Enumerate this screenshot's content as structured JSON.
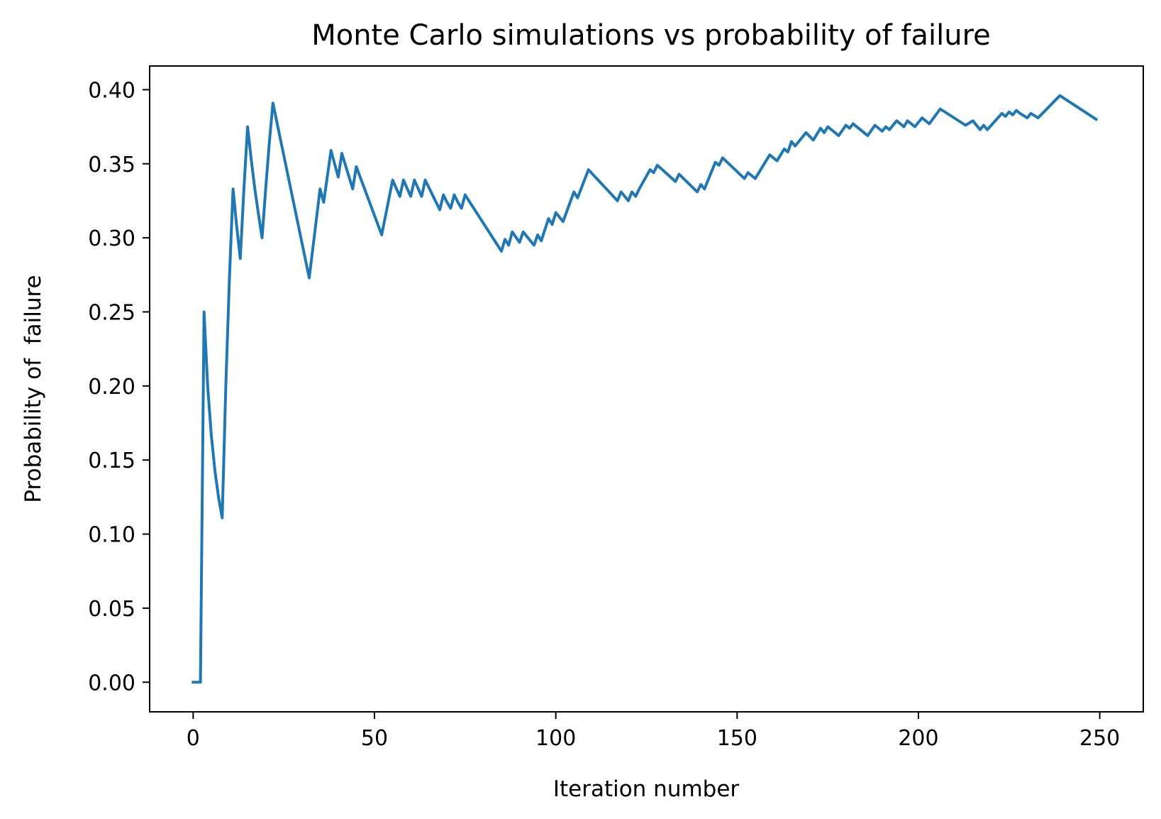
{
  "chart_data": {
    "type": "line",
    "title": "Monte Carlo simulations vs probability of failure",
    "xlabel": "Iteration number",
    "ylabel": "Probability of  failure",
    "xlim": [
      -12,
      262
    ],
    "ylim": [
      -0.02,
      0.416
    ],
    "xticks": [
      0,
      50,
      100,
      150,
      200,
      250
    ],
    "xtick_labels": [
      "0",
      "50",
      "100",
      "150",
      "200",
      "250"
    ],
    "yticks": [
      0.0,
      0.05,
      0.1,
      0.15,
      0.2,
      0.25,
      0.3,
      0.35,
      0.4
    ],
    "ytick_labels": [
      "0.00",
      "0.05",
      "0.10",
      "0.15",
      "0.20",
      "0.25",
      "0.30",
      "0.35",
      "0.40"
    ],
    "grid": false,
    "line_color": "#1f77b4",
    "series": [
      {
        "x": [
          0,
          1,
          2,
          3,
          4,
          5,
          6,
          7,
          8,
          9,
          10,
          11,
          12,
          13,
          14,
          15,
          16,
          17,
          18,
          19,
          20,
          21,
          22,
          32,
          35,
          36,
          38,
          40,
          41,
          44,
          45,
          52,
          55,
          57,
          58,
          60,
          61,
          63,
          64,
          67,
          68,
          69,
          70,
          71,
          72,
          73,
          74,
          75,
          85,
          86,
          87,
          88,
          90,
          91,
          94,
          95,
          96,
          98,
          99,
          100,
          102,
          105,
          106,
          109,
          117,
          118,
          120,
          121,
          122,
          123,
          126,
          127,
          128,
          133,
          134,
          139,
          140,
          141,
          144,
          145,
          146,
          152,
          153,
          155,
          159,
          161,
          163,
          164,
          165,
          166,
          167,
          169,
          171,
          173,
          174,
          175,
          178,
          180,
          181,
          182,
          186,
          188,
          190,
          191,
          192,
          194,
          196,
          197,
          199,
          201,
          203,
          206,
          213,
          215,
          217,
          218,
          219,
          223,
          224,
          225,
          226,
          227,
          228,
          230,
          231,
          233,
          239,
          249
        ],
        "y": [
          0.0,
          0.0,
          0.0,
          0.25,
          0.2,
          0.167,
          0.143,
          0.125,
          0.111,
          0.2,
          0.273,
          0.333,
          0.308,
          0.286,
          0.333,
          0.375,
          0.353,
          0.333,
          0.316,
          0.3,
          0.333,
          0.364,
          0.391,
          0.273,
          0.333,
          0.324,
          0.359,
          0.341,
          0.357,
          0.333,
          0.348,
          0.302,
          0.339,
          0.328,
          0.339,
          0.328,
          0.339,
          0.328,
          0.339,
          0.324,
          0.319,
          0.329,
          0.324,
          0.32,
          0.329,
          0.324,
          0.32,
          0.329,
          0.291,
          0.299,
          0.295,
          0.304,
          0.297,
          0.304,
          0.295,
          0.302,
          0.298,
          0.313,
          0.309,
          0.317,
          0.311,
          0.331,
          0.327,
          0.346,
          0.325,
          0.331,
          0.325,
          0.331,
          0.328,
          0.333,
          0.346,
          0.344,
          0.349,
          0.338,
          0.343,
          0.331,
          0.336,
          0.333,
          0.351,
          0.349,
          0.354,
          0.34,
          0.344,
          0.34,
          0.356,
          0.352,
          0.36,
          0.358,
          0.365,
          0.362,
          0.365,
          0.371,
          0.366,
          0.374,
          0.371,
          0.375,
          0.369,
          0.376,
          0.374,
          0.377,
          0.369,
          0.376,
          0.372,
          0.375,
          0.373,
          0.379,
          0.375,
          0.379,
          0.375,
          0.381,
          0.377,
          0.387,
          0.376,
          0.379,
          0.373,
          0.376,
          0.373,
          0.384,
          0.382,
          0.385,
          0.383,
          0.386,
          0.384,
          0.381,
          0.384,
          0.381,
          0.396,
          0.38
        ]
      }
    ]
  }
}
